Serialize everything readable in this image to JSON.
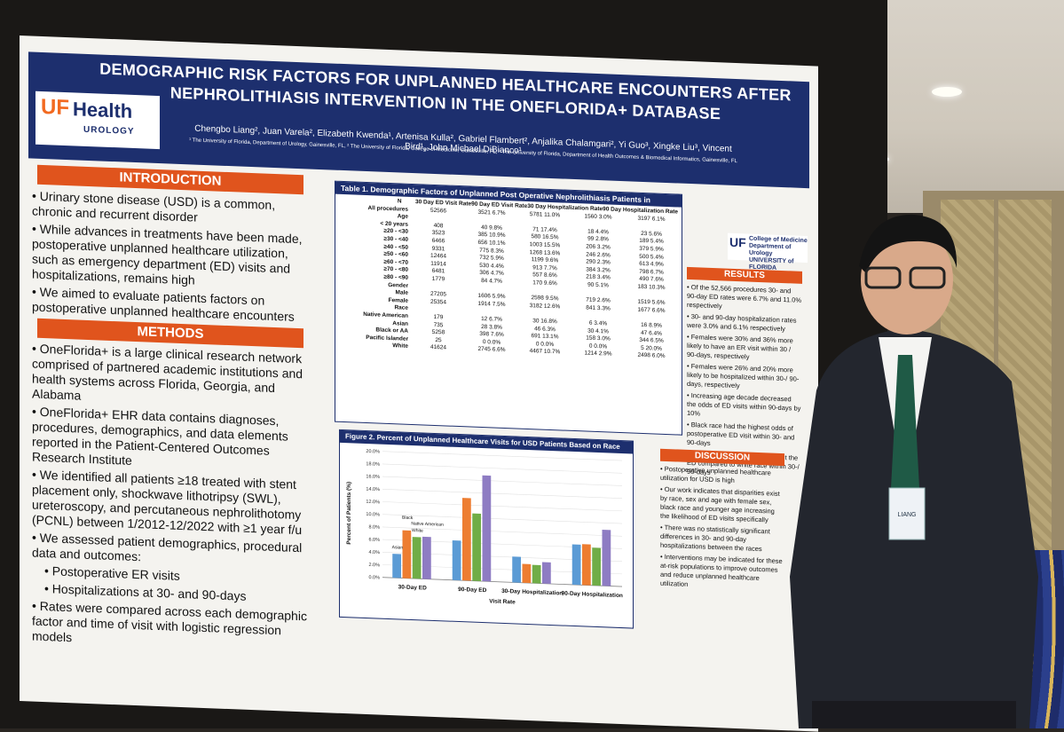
{
  "poster": {
    "title": "DEMOGRAPHIC RISK FACTORS FOR UNPLANNED HEALTHCARE ENCOUNTERS AFTER NEPHROLITHIASIS INTERVENTION IN THE ONEFLORIDA+ DATABASE",
    "authors": "Chengbo Liang², Juan Varela², Elizabeth Kwenda¹, Artenisa Kulla², Gabriel Flambert², Anjalika Chalamgari², Yi Guo³, Xingke Liu³, Vincent Bird¹, John Michael DiBianco¹",
    "affiliations": "¹ The University of Florida, Department of Urology, Gainesville, FL, ² The University of Florida, College of Medicine, Gainesville, FL, ³ The University of Florida, Department of Health Outcomes & Biomedical Informatics, Gainesville, FL",
    "logo_uf": "UF",
    "logo_health": "Health",
    "logo_urology": "UROLOGY",
    "logo_college": "UF",
    "logo_college_text": "College of Medicine Department of Urology UNIVERSITY of FLORIDA",
    "intro": {
      "header": "INTRODUCTION",
      "bullets": [
        "• Urinary stone disease (USD) is a common, chronic and recurrent disorder",
        "• While advances in treatments have been made, postoperative unplanned healthcare utilization, such as emergency department (ED) visits and hospitalizations, remains high",
        "• We aimed to evaluate patients factors on postoperative unplanned healthcare encounters"
      ]
    },
    "methods": {
      "header": "METHODS",
      "bullets": [
        "• OneFlorida+ is a large clinical research network comprised of partnered academic institutions and health systems across Florida, Georgia, and Alabama",
        "• OneFlorida+ EHR data contains diagnoses, procedures, demographics, and data elements reported in the Patient-Centered Outcomes Research Institute",
        "• We identified all patients ≥18 treated with stent placement only, shockwave lithotripsy (SWL), ureteroscopy, and percutaneous nephrolithotomy (PCNL) between 1/2012-12/2022 with ≥1 year f/u",
        "• We assessed patient demographics, procedural data and outcomes:"
      ],
      "sub_bullets": [
        "• Postoperative ER visits",
        "• Hospitalizations at 30- and 90-days"
      ],
      "last_bullet": "• Rates were compared across each demographic factor and time of visit with logistic regression models"
    },
    "table": {
      "title": "Table 1. Demographic Factors of Unplanned Post Operative Nephrolithiasis Patients in OneFlorida+",
      "headers": [
        "",
        "N",
        "30 Day ED Visit Rate",
        "90 Day ED Visit Rate",
        "30 Day Hospitalization Rate",
        "90 Day Hospitalization Rate"
      ],
      "rows": [
        [
          "All procedures",
          "52566",
          "3521  6.7%",
          "5781  11.0%",
          "1560  3.0%",
          "3197  6.1%"
        ],
        [
          "Age",
          "",
          "",
          "",
          "",
          ""
        ],
        [
          "< 20 years",
          "408",
          "40  9.8%",
          "71  17.4%",
          "18  4.4%",
          "23  5.6%"
        ],
        [
          "≥20 - <30",
          "3523",
          "385  10.9%",
          "580  16.5%",
          "99  2.8%",
          "189  5.4%"
        ],
        [
          "≥30 - <40",
          "6466",
          "656  10.1%",
          "1003  15.5%",
          "206  3.2%",
          "379  5.9%"
        ],
        [
          "≥40 - <50",
          "9331",
          "775  8.3%",
          "1268  13.6%",
          "246  2.6%",
          "500  5.4%"
        ],
        [
          "≥50 - <60",
          "12464",
          "732  5.9%",
          "1199  9.6%",
          "290  2.3%",
          "613  4.9%"
        ],
        [
          "≥60 - <70",
          "11914",
          "530  4.4%",
          "913  7.7%",
          "384  3.2%",
          "798  6.7%"
        ],
        [
          "≥70 - <80",
          "6481",
          "306  4.7%",
          "557  8.6%",
          "218  3.4%",
          "490  7.6%"
        ],
        [
          "≥80 - <90",
          "1779",
          "84  4.7%",
          "170  9.6%",
          "90  5.1%",
          "183  10.3%"
        ],
        [
          "Gender",
          "",
          "",
          "",
          "",
          ""
        ],
        [
          "Male",
          "27205",
          "1606  5.9%",
          "2598  9.5%",
          "719  2.6%",
          "1519  5.6%"
        ],
        [
          "Female",
          "25354",
          "1914  7.5%",
          "3182  12.6%",
          "841  3.3%",
          "1677  6.6%"
        ],
        [
          "Race",
          "",
          "",
          "",
          "",
          ""
        ],
        [
          "Native American",
          "179",
          "12  6.7%",
          "30  16.8%",
          "6  3.4%",
          "16  8.9%"
        ],
        [
          "Asian",
          "735",
          "28  3.8%",
          "46  6.3%",
          "30  4.1%",
          "47  6.4%"
        ],
        [
          "Black or AA",
          "5258",
          "398  7.6%",
          "691  13.1%",
          "158  3.0%",
          "344  6.5%"
        ],
        [
          "Pacific Islander",
          "25",
          "0  0.0%",
          "0  0.0%",
          "0  0.0%",
          "5  20.0%"
        ],
        [
          "White",
          "41624",
          "2745  6.6%",
          "4467  10.7%",
          "1214  2.9%",
          "2498  6.0%"
        ]
      ]
    },
    "results": {
      "header": "RESULTS",
      "bullets": [
        "• Of the 52,566 procedures 30- and 90-day ED rates were 6.7% and 11.0% respectively",
        "• 30- and 90-day hospitalization rates were 3.0% and 6.1% respectively",
        "• Females were 30% and 36% more likely to have an ER visit within 30 / 90-days, respectively",
        "• Females were 26% and 20% more likely to be hospitalized within 30-/ 90-days, respectively",
        "• Increasing age decade decreased the odds of ED visits within 90-days by 10%",
        "• Black race had the highest odds of postoperative ED visit within 30- and 90-days",
        "• 17% and 26% more likely to visit the ED compared to white race within 30-/ 90-days"
      ]
    },
    "discussion": {
      "header": "DISCUSSION",
      "bullets": [
        "• Postoperative unplanned healthcare utilization for USD is high",
        "• Our work indicates that disparities exist by race, sex and age with female sex, black race and younger age increasing the likelihood of ED visits specifically",
        "• There was no statistically significant differences in 30- and 90-day hospitalizations between the races",
        "• Interventions may be indicated for these at-risk populations to improve outcomes and reduce unplanned healthcare utilization"
      ]
    },
    "chart_data": {
      "type": "bar",
      "title": "Figure 2. Percent of Unplanned Healthcare Visits for USD Patients Based on Race",
      "xlabel": "Visit Rate",
      "ylabel": "Percent of Patients (%)",
      "ylim": [
        0,
        20
      ],
      "yticks": [
        "0.0%",
        "2.0%",
        "4.0%",
        "6.0%",
        "8.0%",
        "10.0%",
        "12.0%",
        "14.0%",
        "16.0%",
        "18.0%",
        "20.0%"
      ],
      "categories": [
        "30-Day ED",
        "90-Day ED",
        "30-Day Hospitalization",
        "90-Day Hospitalization"
      ],
      "annotations": [
        "Asian",
        "Black",
        "White",
        "Native American"
      ],
      "series": [
        {
          "name": "Asian",
          "color": "#5b9bd5",
          "values": [
            3.8,
            6.3,
            4.1,
            6.4
          ]
        },
        {
          "name": "Black",
          "color": "#ed7d31",
          "values": [
            7.6,
            13.1,
            3.0,
            6.5
          ]
        },
        {
          "name": "White",
          "color": "#70ad47",
          "values": [
            6.6,
            10.7,
            2.9,
            6.0
          ]
        },
        {
          "name": "Native American",
          "color": "#8e7cc3",
          "values": [
            6.7,
            16.8,
            3.4,
            8.9
          ]
        }
      ]
    }
  },
  "badge": {
    "text": "LIANG"
  }
}
